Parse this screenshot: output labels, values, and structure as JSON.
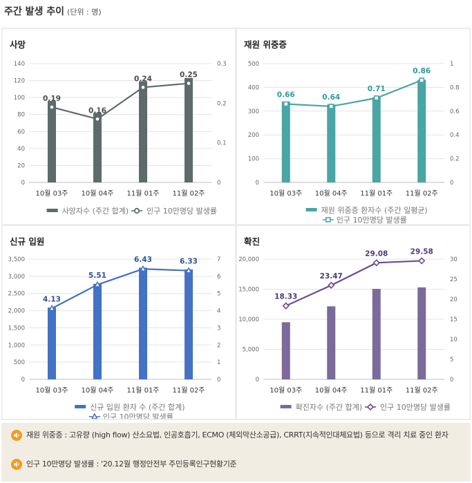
{
  "page": {
    "title": "주간 발생 추이",
    "unit": "(단위 : 명)"
  },
  "chart_data": [
    {
      "id": "death",
      "title": "사망",
      "type": "bar+line",
      "categories": [
        "10월 03주",
        "10월 04주",
        "11월 01주",
        "11월 02주"
      ],
      "bar": {
        "name": "사망자수 (주간 합계)",
        "values": [
          96,
          82,
          119,
          123
        ],
        "color": "#5f6b6b"
      },
      "line": {
        "name": "인구 10만명당 발생률",
        "values": [
          0.19,
          0.16,
          0.24,
          0.25
        ],
        "labels": [
          "0.19",
          "0.16",
          "0.24",
          "0.25"
        ],
        "color": "#5f6b6b",
        "marker": "circle"
      },
      "y_left": {
        "min": 0,
        "max": 140,
        "ticks": [
          "0",
          "20",
          "40",
          "60",
          "80",
          "100",
          "120",
          "140"
        ]
      },
      "y_right": {
        "min": 0,
        "max": 0.3,
        "ticks": [
          "0",
          "0.1",
          "0.2",
          "0.3"
        ]
      },
      "label_color": "#4a4a4a"
    },
    {
      "id": "severe",
      "title": "재원 위중증",
      "type": "bar+line",
      "categories": [
        "10월 03주",
        "10월 04주",
        "11월 01주",
        "11월 02주"
      ],
      "bar": {
        "name": "재원 위중증 환자수 (주간 일평균)",
        "values": [
          340,
          328,
          358,
          432
        ],
        "color": "#4aa5a5"
      },
      "line": {
        "name": "인구 10만명당 발생률",
        "values": [
          0.66,
          0.64,
          0.71,
          0.86
        ],
        "labels": [
          "0.66",
          "0.64",
          "0.71",
          "0.86"
        ],
        "color": "#4aa5a5",
        "marker": "square"
      },
      "y_left": {
        "min": 0,
        "max": 500,
        "ticks": [
          "0",
          "100",
          "200",
          "300",
          "400",
          "500"
        ]
      },
      "y_right": {
        "min": 0,
        "max": 1,
        "ticks": [
          "0",
          "0.2",
          "0.4",
          "0.6",
          "0.8",
          "1"
        ]
      },
      "label_color": "#2f9a9a"
    },
    {
      "id": "admission",
      "title": "신규 입원",
      "type": "bar+line",
      "categories": [
        "10월 03주",
        "10월 04주",
        "11월 01주",
        "11월 02주"
      ],
      "bar": {
        "name": "신규 입원 환자 수 (주간 합계)",
        "values": [
          2090,
          2780,
          3250,
          3200
        ],
        "color": "#4472c4"
      },
      "line": {
        "name": "인구 10만명당 발생률",
        "values": [
          4.13,
          5.51,
          6.43,
          6.33
        ],
        "labels": [
          "4.13",
          "5.51",
          "6.43",
          "6.33"
        ],
        "color": "#4472c4",
        "marker": "triangle"
      },
      "y_left": {
        "min": 0,
        "max": 3500,
        "ticks": [
          "0",
          "500",
          "1,000",
          "1,500",
          "2,000",
          "2,500",
          "3,000",
          "3,500"
        ]
      },
      "y_right": {
        "min": 0,
        "max": 7,
        "ticks": [
          "0",
          "1",
          "2",
          "3",
          "4",
          "5",
          "6",
          "7"
        ]
      },
      "label_color": "#2f5597"
    },
    {
      "id": "confirmed",
      "title": "확진",
      "type": "bar+line",
      "categories": [
        "10월 03주",
        "10월 04주",
        "11월 01주",
        "11월 02주"
      ],
      "bar": {
        "name": "확진자수 (주간 합계)",
        "values": [
          9500,
          12150,
          15050,
          15300
        ],
        "color": "#7b6a9a"
      },
      "line": {
        "name": "인구 10만명당 발생률",
        "values": [
          18.33,
          23.47,
          29.08,
          29.58
        ],
        "labels": [
          "18.33",
          "23.47",
          "29.08",
          "29.58"
        ],
        "color": "#6a4c93",
        "marker": "diamond"
      },
      "y_left": {
        "min": 0,
        "max": 20000,
        "ticks": [
          "0",
          "5,000",
          "10,000",
          "15,000",
          "20,000"
        ]
      },
      "y_right": {
        "min": 0,
        "max": 30,
        "ticks": [
          "0",
          "5",
          "10",
          "15",
          "20",
          "25",
          "30"
        ]
      },
      "label_color": "#4e3a7a"
    }
  ],
  "notes": [
    {
      "text": "재원 위중증 : 고유량 (high flow) 산소요법, 인공호흡기, ECMO (체외막산소공급), CRRT(지속적인대체요법) 등으로 격리 치료 중인 환자"
    },
    {
      "text": "인구 10만명당 발생률 : '20.12월 행정안전부 주민등록인구현황기준"
    }
  ],
  "colors": {
    "note_bg": "#f2ede2",
    "note_icon": "#f39a1e",
    "panel_bg": "#ececec"
  }
}
